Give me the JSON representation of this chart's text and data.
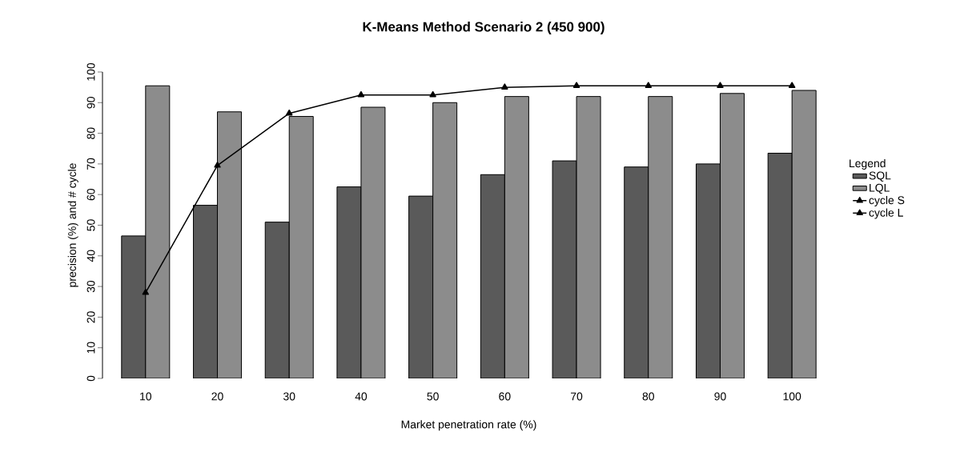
{
  "chart_data": {
    "type": "bar",
    "title": "K-Means Method Scenario 2 (450 900)",
    "xlabel": "Market penetration rate (%)",
    "ylabel": "precision (%) and # cycle",
    "legend_title": "Legend",
    "legend": "right",
    "marker": "triangle",
    "categories": [
      "10",
      "20",
      "30",
      "40",
      "50",
      "60",
      "70",
      "80",
      "90",
      "100"
    ],
    "ylim": [
      0,
      100
    ],
    "yticks": [
      0,
      10,
      20,
      30,
      40,
      50,
      60,
      70,
      80,
      90,
      100
    ],
    "series": [
      {
        "name": "SQL",
        "color": "#5a5a5a",
        "values": [
          46.5,
          56.5,
          51,
          62.5,
          59.5,
          66.5,
          71,
          69,
          70,
          73.5
        ]
      },
      {
        "name": "LQL",
        "color": "#8c8c8c",
        "values": [
          95.5,
          87,
          85.5,
          88.5,
          90,
          92,
          92,
          92,
          93,
          94
        ]
      },
      {
        "name": "cycle S",
        "type": "line",
        "color": "#000000",
        "values": [
          28,
          69.5,
          86.5,
          92.5,
          92.5,
          95,
          95.5,
          95.5,
          95.5,
          95.5
        ]
      },
      {
        "name": "cycle L",
        "type": "line",
        "color": "#000000",
        "values": [
          null,
          null,
          null,
          null,
          null,
          null,
          null,
          null,
          null,
          null
        ]
      }
    ]
  }
}
